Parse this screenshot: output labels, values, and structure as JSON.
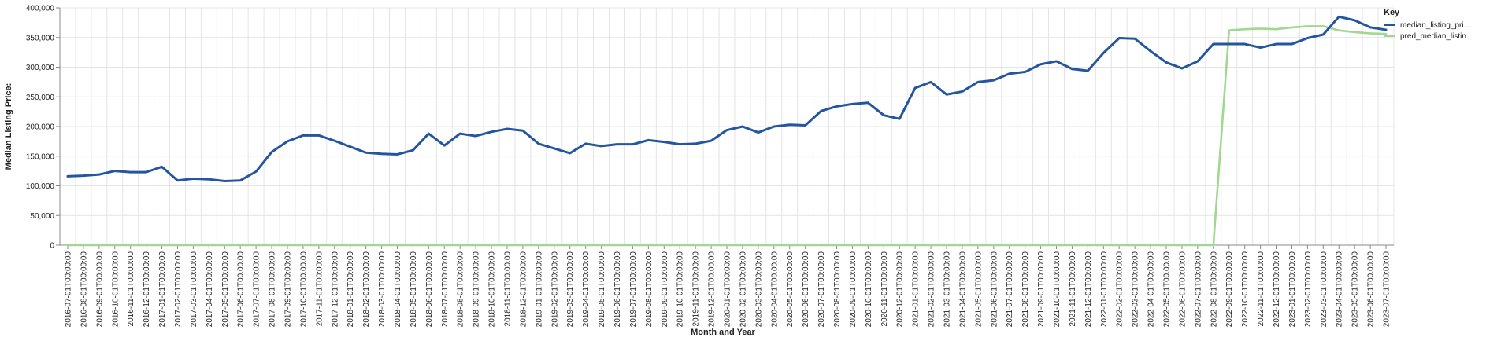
{
  "chart_data": {
    "type": "line",
    "title": "",
    "xlabel": "Month and Year",
    "ylabel": "Median Listing Price:",
    "ylim": [
      0,
      400000
    ],
    "y_ticks": [
      "0",
      "50,000",
      "100,000",
      "150,000",
      "200,000",
      "250,000",
      "300,000",
      "350,000",
      "400,000"
    ],
    "grid": true,
    "legend": {
      "title": "Key",
      "placement": "right",
      "entries": [
        "median_listing_pri…",
        "pred_median_listin…"
      ]
    },
    "colors": {
      "actual": "#2456a0",
      "pred": "#9fd88e",
      "grid": "#e4e4e4",
      "axis": "#888888"
    },
    "x": [
      "2016-07-01T00:00:00",
      "2016-08-01T00:00:00",
      "2016-09-01T00:00:00",
      "2016-10-01T00:00:00",
      "2016-11-01T00:00:00",
      "2016-12-01T00:00:00",
      "2017-01-01T00:00:00",
      "2017-02-01T00:00:00",
      "2017-03-01T00:00:00",
      "2017-04-01T00:00:00",
      "2017-05-01T00:00:00",
      "2017-06-01T00:00:00",
      "2017-07-01T00:00:00",
      "2017-08-01T00:00:00",
      "2017-09-01T00:00:00",
      "2017-10-01T00:00:00",
      "2017-11-01T00:00:00",
      "2017-12-01T00:00:00",
      "2018-01-01T00:00:00",
      "2018-02-01T00:00:00",
      "2018-03-01T00:00:00",
      "2018-04-01T00:00:00",
      "2018-05-01T00:00:00",
      "2018-06-01T00:00:00",
      "2018-07-01T00:00:00",
      "2018-08-01T00:00:00",
      "2018-09-01T00:00:00",
      "2018-10-01T00:00:00",
      "2018-11-01T00:00:00",
      "2018-12-01T00:00:00",
      "2019-01-01T00:00:00",
      "2019-02-01T00:00:00",
      "2019-03-01T00:00:00",
      "2019-04-01T00:00:00",
      "2019-05-01T00:00:00",
      "2019-06-01T00:00:00",
      "2019-07-01T00:00:00",
      "2019-08-01T00:00:00",
      "2019-09-01T00:00:00",
      "2019-10-01T00:00:00",
      "2019-11-01T00:00:00",
      "2019-12-01T00:00:00",
      "2020-01-01T00:00:00",
      "2020-02-01T00:00:00",
      "2020-03-01T00:00:00",
      "2020-04-01T00:00:00",
      "2020-05-01T00:00:00",
      "2020-06-01T00:00:00",
      "2020-07-01T00:00:00",
      "2020-08-01T00:00:00",
      "2020-09-01T00:00:00",
      "2020-10-01T00:00:00",
      "2020-11-01T00:00:00",
      "2020-12-01T00:00:00",
      "2021-01-01T00:00:00",
      "2021-02-01T00:00:00",
      "2021-03-01T00:00:00",
      "2021-04-01T00:00:00",
      "2021-05-01T00:00:00",
      "2021-06-01T00:00:00",
      "2021-07-01T00:00:00",
      "2021-08-01T00:00:00",
      "2021-09-01T00:00:00",
      "2021-10-01T00:00:00",
      "2021-11-01T00:00:00",
      "2021-12-01T00:00:00",
      "2022-01-01T00:00:00",
      "2022-02-01T00:00:00",
      "2022-03-01T00:00:00",
      "2022-04-01T00:00:00",
      "2022-05-01T00:00:00",
      "2022-06-01T00:00:00",
      "2022-07-01T00:00:00",
      "2022-08-01T00:00:00",
      "2022-09-01T00:00:00",
      "2022-10-01T00:00:00",
      "2022-11-01T00:00:00",
      "2022-12-01T00:00:00",
      "2023-01-01T00:00:00",
      "2023-02-01T00:00:00",
      "2023-03-01T00:00:00",
      "2023-04-01T00:00:00",
      "2023-05-01T00:00:00",
      "2023-06-01T00:00:00",
      "2023-07-01T00:00:00"
    ],
    "series": [
      {
        "name": "median_listing_pri…",
        "values": [
          116000,
          117000,
          119000,
          125000,
          123000,
          123000,
          132000,
          109000,
          112000,
          111000,
          108000,
          109000,
          124000,
          157000,
          175000,
          185000,
          185000,
          176000,
          166000,
          156000,
          154000,
          153000,
          160000,
          188000,
          168000,
          188000,
          184000,
          191000,
          196000,
          193000,
          171000,
          163000,
          155000,
          171000,
          167000,
          170000,
          170000,
          177000,
          174000,
          170000,
          171000,
          176000,
          194000,
          200000,
          190000,
          200000,
          203000,
          202000,
          226000,
          234000,
          238000,
          240000,
          219000,
          213000,
          265000,
          275000,
          254000,
          259000,
          275000,
          278000,
          289000,
          292000,
          305000,
          310000,
          297000,
          294000,
          324000,
          349000,
          348000,
          327000,
          308000,
          298000,
          310000,
          339000,
          339000,
          339000,
          333000,
          339000,
          339000,
          349000,
          355000,
          385000,
          379000,
          367000,
          363000
        ]
      },
      {
        "name": "pred_median_listin…",
        "values": [
          0,
          0,
          0,
          0,
          0,
          0,
          0,
          0,
          0,
          0,
          0,
          0,
          0,
          0,
          0,
          0,
          0,
          0,
          0,
          0,
          0,
          0,
          0,
          0,
          0,
          0,
          0,
          0,
          0,
          0,
          0,
          0,
          0,
          0,
          0,
          0,
          0,
          0,
          0,
          0,
          0,
          0,
          0,
          0,
          0,
          0,
          0,
          0,
          0,
          0,
          0,
          0,
          0,
          0,
          0,
          0,
          0,
          0,
          0,
          0,
          0,
          0,
          0,
          0,
          0,
          0,
          0,
          0,
          0,
          0,
          0,
          0,
          0,
          0,
          362000,
          364000,
          365000,
          364000,
          367000,
          369000,
          369000,
          362000,
          359000,
          357000,
          356000
        ]
      }
    ]
  }
}
